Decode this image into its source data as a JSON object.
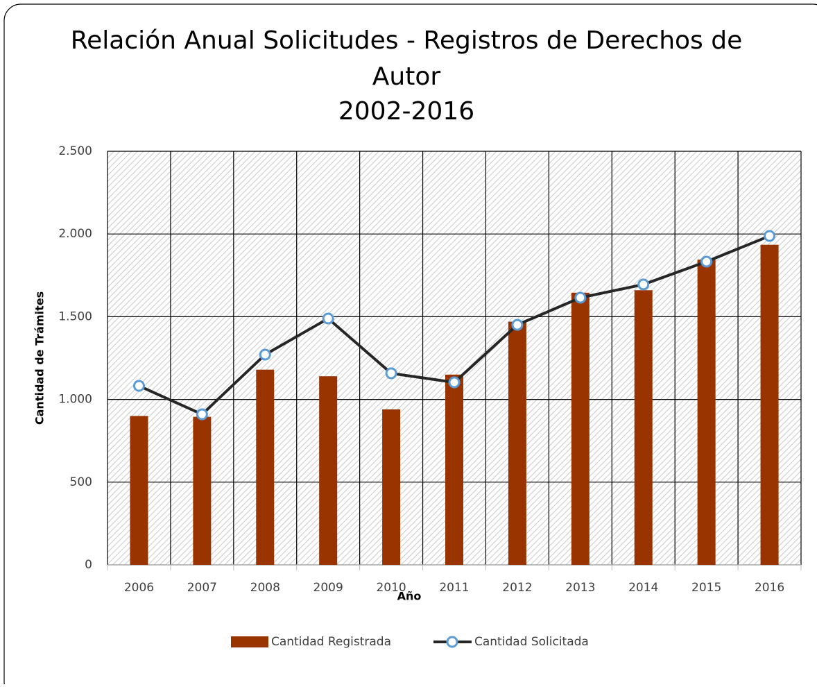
{
  "chart_data": {
    "type": "bar_line",
    "title": [
      "Relación Anual Solicitudes - Registros de Derechos de",
      "Autor",
      "2002-2016"
    ],
    "x_label": "Año",
    "y_label": "Cantidad de Trámites",
    "categories": [
      "2006",
      "2007",
      "2008",
      "2009",
      "2010",
      "2011",
      "2012",
      "2013",
      "2014",
      "2015",
      "2016"
    ],
    "series": [
      {
        "name": "Cantidad Registrada",
        "type": "bar",
        "color": "#993300",
        "values": [
          900,
          895,
          1180,
          1140,
          940,
          1150,
          1470,
          1645,
          1660,
          1845,
          1935
        ]
      },
      {
        "name": "Cantidad Solicitada",
        "type": "line",
        "color": "#262626",
        "marker_color": "#5b9bd5",
        "values": [
          1082,
          910,
          1271,
          1489,
          1158,
          1103,
          1451,
          1615,
          1695,
          1833,
          1988
        ]
      }
    ],
    "ylim": [
      0,
      2500
    ],
    "yticks": [
      0,
      500,
      {
        "value": 1000,
        "label": "1.000"
      },
      {
        "value": 1500,
        "label": "1.500"
      },
      {
        "value": 2000,
        "label": "2.000"
      },
      {
        "value": 2500,
        "label": "2.500"
      }
    ],
    "grid": true,
    "legend": "bottom"
  }
}
